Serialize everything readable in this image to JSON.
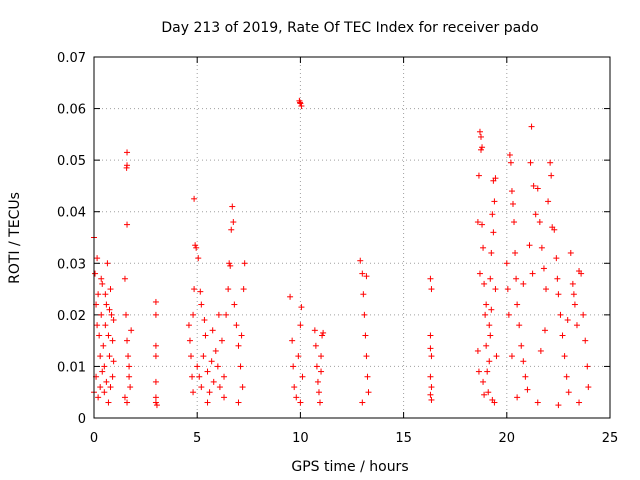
{
  "chart_data": {
    "type": "scatter",
    "title": "Day 213 of 2019, Rate Of TEC Index for receiver pado",
    "xlabel": "GPS time / hours",
    "ylabel": "ROTI / TECUs",
    "xlim": [
      0,
      25
    ],
    "ylim": [
      0,
      0.07
    ],
    "xticks": [
      0,
      5,
      10,
      15,
      20,
      25
    ],
    "xtick_labels": [
      "0",
      "5",
      "10",
      "15",
      "20",
      "25"
    ],
    "yticks": [
      0,
      0.01,
      0.02,
      0.03,
      0.04,
      0.05,
      0.06,
      0.07
    ],
    "ytick_labels": [
      "0",
      "0.01",
      "0.02",
      "0.03",
      "0.04",
      "0.05",
      "0.06",
      "0.07"
    ],
    "grid": true,
    "marker": "+",
    "color": "#ff0000",
    "series": [
      {
        "name": "ROTI",
        "points": [
          [
            0.0,
            0.035
          ],
          [
            0.05,
            0.028
          ],
          [
            0.1,
            0.022
          ],
          [
            0.15,
            0.018
          ],
          [
            0.2,
            0.024
          ],
          [
            0.25,
            0.016
          ],
          [
            0.3,
            0.012
          ],
          [
            0.35,
            0.02
          ],
          [
            0.4,
            0.026
          ],
          [
            0.45,
            0.014
          ],
          [
            0.5,
            0.01
          ],
          [
            0.55,
            0.018
          ],
          [
            0.6,
            0.022
          ],
          [
            0.65,
            0.03
          ],
          [
            0.7,
            0.016
          ],
          [
            0.75,
            0.012
          ],
          [
            0.8,
            0.025
          ],
          [
            0.85,
            0.02
          ],
          [
            0.9,
            0.015
          ],
          [
            0.95,
            0.011
          ],
          [
            0.0,
            0.005
          ],
          [
            0.1,
            0.008
          ],
          [
            0.2,
            0.004
          ],
          [
            0.3,
            0.006
          ],
          [
            0.4,
            0.009
          ],
          [
            0.5,
            0.005
          ],
          [
            0.6,
            0.007
          ],
          [
            0.7,
            0.003
          ],
          [
            0.8,
            0.006
          ],
          [
            0.9,
            0.008
          ],
          [
            0.15,
            0.031
          ],
          [
            0.35,
            0.027
          ],
          [
            0.55,
            0.024
          ],
          [
            0.75,
            0.021
          ],
          [
            0.95,
            0.019
          ],
          [
            1.5,
            0.027
          ],
          [
            1.55,
            0.02
          ],
          [
            1.6,
            0.015
          ],
          [
            1.65,
            0.012
          ],
          [
            1.7,
            0.008
          ],
          [
            1.75,
            0.006
          ],
          [
            1.5,
            0.004
          ],
          [
            1.6,
            0.003
          ],
          [
            1.7,
            0.01
          ],
          [
            1.8,
            0.017
          ],
          [
            1.6,
            0.0515
          ],
          [
            1.6,
            0.049
          ],
          [
            1.58,
            0.0485
          ],
          [
            1.6,
            0.0375
          ],
          [
            3.0,
            0.0225
          ],
          [
            3.0,
            0.02
          ],
          [
            3.0,
            0.014
          ],
          [
            3.0,
            0.012
          ],
          [
            3.0,
            0.007
          ],
          [
            3.0,
            0.004
          ],
          [
            3.0,
            0.003
          ],
          [
            3.05,
            0.0025
          ],
          [
            4.6,
            0.018
          ],
          [
            4.65,
            0.015
          ],
          [
            4.7,
            0.012
          ],
          [
            4.8,
            0.02
          ],
          [
            4.85,
            0.025
          ],
          [
            4.9,
            0.0335
          ],
          [
            4.95,
            0.033
          ],
          [
            4.85,
            0.0425
          ],
          [
            5.0,
            0.01
          ],
          [
            5.1,
            0.008
          ],
          [
            5.2,
            0.006
          ],
          [
            5.3,
            0.012
          ],
          [
            5.4,
            0.016
          ],
          [
            5.5,
            0.009
          ],
          [
            5.6,
            0.005
          ],
          [
            5.7,
            0.011
          ],
          [
            5.8,
            0.007
          ],
          [
            5.9,
            0.013
          ],
          [
            6.0,
            0.01
          ],
          [
            6.1,
            0.006
          ],
          [
            6.2,
            0.015
          ],
          [
            6.3,
            0.008
          ],
          [
            6.4,
            0.02
          ],
          [
            6.5,
            0.025
          ],
          [
            6.55,
            0.03
          ],
          [
            6.6,
            0.0295
          ],
          [
            6.65,
            0.0365
          ],
          [
            6.7,
            0.041
          ],
          [
            6.75,
            0.038
          ],
          [
            6.8,
            0.022
          ],
          [
            6.9,
            0.018
          ],
          [
            7.0,
            0.014
          ],
          [
            7.1,
            0.01
          ],
          [
            7.2,
            0.006
          ],
          [
            7.25,
            0.025
          ],
          [
            7.3,
            0.03
          ],
          [
            6.3,
            0.004
          ],
          [
            5.5,
            0.003
          ],
          [
            4.8,
            0.005
          ],
          [
            7.0,
            0.003
          ],
          [
            5.2,
            0.022
          ],
          [
            5.35,
            0.019
          ],
          [
            5.05,
            0.031
          ],
          [
            5.15,
            0.0245
          ],
          [
            6.05,
            0.02
          ],
          [
            5.75,
            0.017
          ],
          [
            7.15,
            0.016
          ],
          [
            4.75,
            0.008
          ],
          [
            9.5,
            0.0235
          ],
          [
            9.6,
            0.015
          ],
          [
            9.65,
            0.01
          ],
          [
            9.7,
            0.006
          ],
          [
            9.8,
            0.004
          ],
          [
            9.9,
            0.012
          ],
          [
            10.0,
            0.018
          ],
          [
            10.05,
            0.0215
          ],
          [
            10.1,
            0.008
          ],
          [
            10.0,
            0.003
          ],
          [
            9.95,
            0.0615
          ],
          [
            10.0,
            0.061
          ],
          [
            10.05,
            0.0605
          ],
          [
            9.98,
            0.0612
          ],
          [
            10.7,
            0.017
          ],
          [
            10.75,
            0.014
          ],
          [
            10.8,
            0.01
          ],
          [
            10.85,
            0.007
          ],
          [
            10.9,
            0.005
          ],
          [
            11.0,
            0.012
          ],
          [
            11.05,
            0.016
          ],
          [
            11.1,
            0.0165
          ],
          [
            10.95,
            0.003
          ],
          [
            11.0,
            0.009
          ],
          [
            12.9,
            0.0305
          ],
          [
            13.0,
            0.028
          ],
          [
            13.05,
            0.024
          ],
          [
            13.1,
            0.02
          ],
          [
            13.15,
            0.016
          ],
          [
            13.2,
            0.012
          ],
          [
            13.25,
            0.008
          ],
          [
            13.3,
            0.005
          ],
          [
            13.0,
            0.003
          ],
          [
            13.2,
            0.0275
          ],
          [
            16.3,
            0.027
          ],
          [
            16.35,
            0.025
          ],
          [
            16.3,
            0.016
          ],
          [
            16.3,
            0.0135
          ],
          [
            16.35,
            0.012
          ],
          [
            16.3,
            0.008
          ],
          [
            16.35,
            0.006
          ],
          [
            16.3,
            0.0045
          ],
          [
            16.35,
            0.0035
          ],
          [
            18.6,
            0.038
          ],
          [
            18.65,
            0.047
          ],
          [
            18.7,
            0.0555
          ],
          [
            18.75,
            0.052
          ],
          [
            18.8,
            0.0375
          ],
          [
            18.85,
            0.033
          ],
          [
            18.9,
            0.026
          ],
          [
            18.95,
            0.02
          ],
          [
            19.0,
            0.014
          ],
          [
            19.05,
            0.009
          ],
          [
            19.1,
            0.005
          ],
          [
            19.15,
            0.018
          ],
          [
            19.2,
            0.027
          ],
          [
            19.25,
            0.032
          ],
          [
            19.3,
            0.0395
          ],
          [
            19.35,
            0.046
          ],
          [
            19.4,
            0.042
          ],
          [
            19.45,
            0.025
          ],
          [
            19.5,
            0.012
          ],
          [
            19.4,
            0.003
          ],
          [
            18.6,
            0.013
          ],
          [
            18.65,
            0.009
          ],
          [
            18.9,
            0.0045
          ],
          [
            19.3,
            0.0035
          ],
          [
            18.75,
            0.0545
          ],
          [
            18.8,
            0.0525
          ],
          [
            19.45,
            0.0465
          ],
          [
            19.35,
            0.036
          ],
          [
            19.0,
            0.022
          ],
          [
            19.2,
            0.016
          ],
          [
            18.7,
            0.028
          ],
          [
            19.25,
            0.021
          ],
          [
            19.15,
            0.011
          ],
          [
            18.85,
            0.007
          ],
          [
            20.0,
            0.03
          ],
          [
            20.05,
            0.025
          ],
          [
            20.1,
            0.02
          ],
          [
            20.15,
            0.051
          ],
          [
            20.2,
            0.0495
          ],
          [
            20.25,
            0.044
          ],
          [
            20.3,
            0.0415
          ],
          [
            20.35,
            0.038
          ],
          [
            20.4,
            0.032
          ],
          [
            20.45,
            0.027
          ],
          [
            20.5,
            0.022
          ],
          [
            20.6,
            0.018
          ],
          [
            20.7,
            0.014
          ],
          [
            20.8,
            0.011
          ],
          [
            20.9,
            0.008
          ],
          [
            21.0,
            0.0055
          ],
          [
            21.1,
            0.0335
          ],
          [
            21.15,
            0.0495
          ],
          [
            21.2,
            0.0565
          ],
          [
            21.3,
            0.045
          ],
          [
            21.4,
            0.0395
          ],
          [
            21.5,
            0.0445
          ],
          [
            21.6,
            0.038
          ],
          [
            21.7,
            0.033
          ],
          [
            21.8,
            0.029
          ],
          [
            21.9,
            0.025
          ],
          [
            22.0,
            0.042
          ],
          [
            22.1,
            0.0495
          ],
          [
            22.15,
            0.047
          ],
          [
            22.2,
            0.037
          ],
          [
            22.3,
            0.0365
          ],
          [
            22.4,
            0.031
          ],
          [
            22.5,
            0.024
          ],
          [
            22.6,
            0.02
          ],
          [
            22.7,
            0.016
          ],
          [
            22.8,
            0.012
          ],
          [
            22.9,
            0.008
          ],
          [
            23.0,
            0.005
          ],
          [
            23.1,
            0.032
          ],
          [
            23.2,
            0.026
          ],
          [
            23.3,
            0.022
          ],
          [
            23.4,
            0.018
          ],
          [
            23.5,
            0.0285
          ],
          [
            23.6,
            0.028
          ],
          [
            23.7,
            0.02
          ],
          [
            23.8,
            0.015
          ],
          [
            23.9,
            0.01
          ],
          [
            23.95,
            0.006
          ],
          [
            21.5,
            0.003
          ],
          [
            22.5,
            0.0025
          ],
          [
            20.5,
            0.004
          ],
          [
            23.5,
            0.003
          ],
          [
            20.8,
            0.026
          ],
          [
            21.25,
            0.028
          ],
          [
            22.45,
            0.027
          ],
          [
            23.25,
            0.024
          ],
          [
            21.85,
            0.017
          ],
          [
            22.95,
            0.019
          ],
          [
            20.25,
            0.012
          ],
          [
            21.65,
            0.013
          ]
        ]
      }
    ]
  }
}
